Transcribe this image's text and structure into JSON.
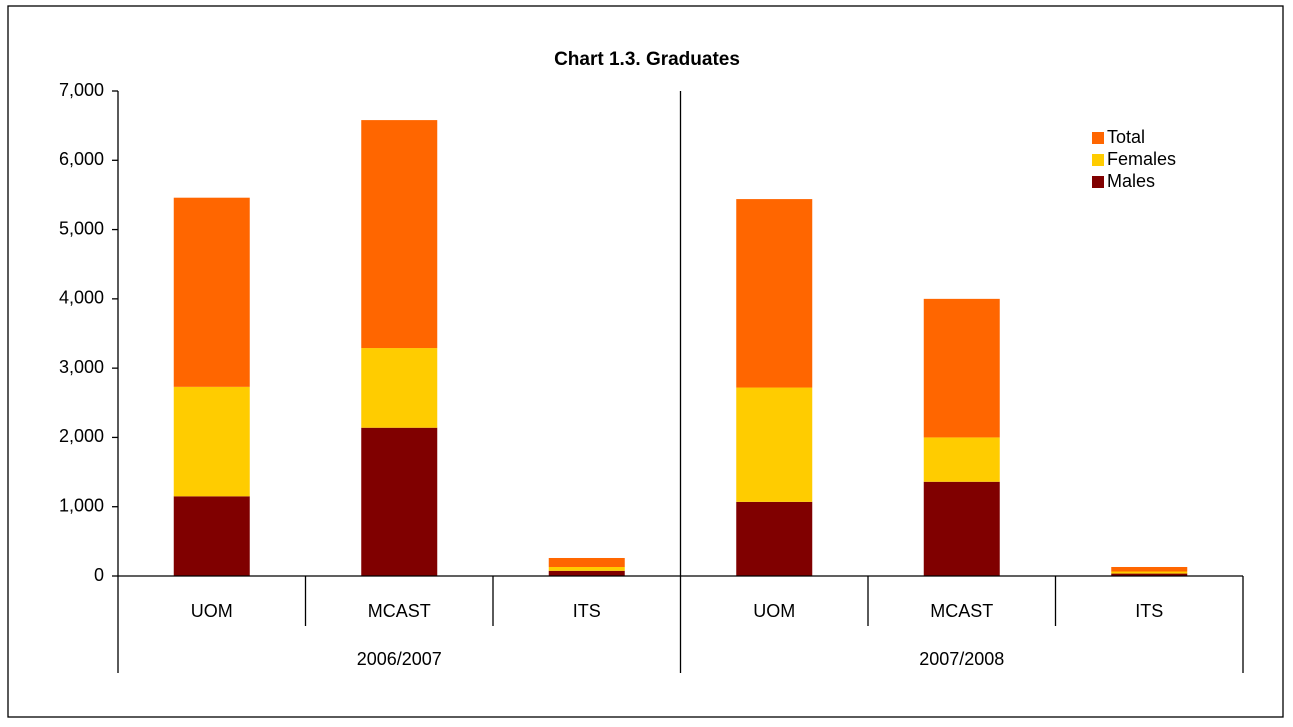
{
  "chart_data": {
    "type": "stacked_bar",
    "title": "Chart 1.3.  Graduates",
    "categories": [
      "UOM",
      "MCAST",
      "ITS",
      "UOM",
      "MCAST",
      "ITS"
    ],
    "groups": [
      {
        "label": "2006/2007",
        "categories": [
          "UOM",
          "MCAST",
          "ITS"
        ]
      },
      {
        "label": "2007/2008",
        "categories": [
          "UOM",
          "MCAST",
          "ITS"
        ]
      }
    ],
    "series": [
      {
        "name": "Males",
        "color": "#800000",
        "values": [
          1150,
          2140,
          75,
          1070,
          1360,
          35
        ]
      },
      {
        "name": "Females",
        "color": "#ffcc00",
        "values": [
          1580,
          1150,
          55,
          1650,
          640,
          30
        ]
      },
      {
        "name": "Total",
        "color": "#ff6600",
        "values": [
          2730,
          3290,
          130,
          2720,
          2000,
          65
        ]
      }
    ],
    "ylim": [
      0,
      7000
    ],
    "yticks": [
      0,
      {
        "value": 1000,
        "label": "1,000"
      },
      {
        "value": 2000,
        "label": "2,000"
      },
      {
        "value": 3000,
        "label": "3,000"
      },
      {
        "value": 4000,
        "label": "4,000"
      },
      {
        "value": 5000,
        "label": "5,000"
      },
      {
        "value": 6000,
        "label": "6,000"
      },
      {
        "value": 7000,
        "label": "7,000"
      }
    ],
    "legend": "top-right",
    "grid": false
  }
}
